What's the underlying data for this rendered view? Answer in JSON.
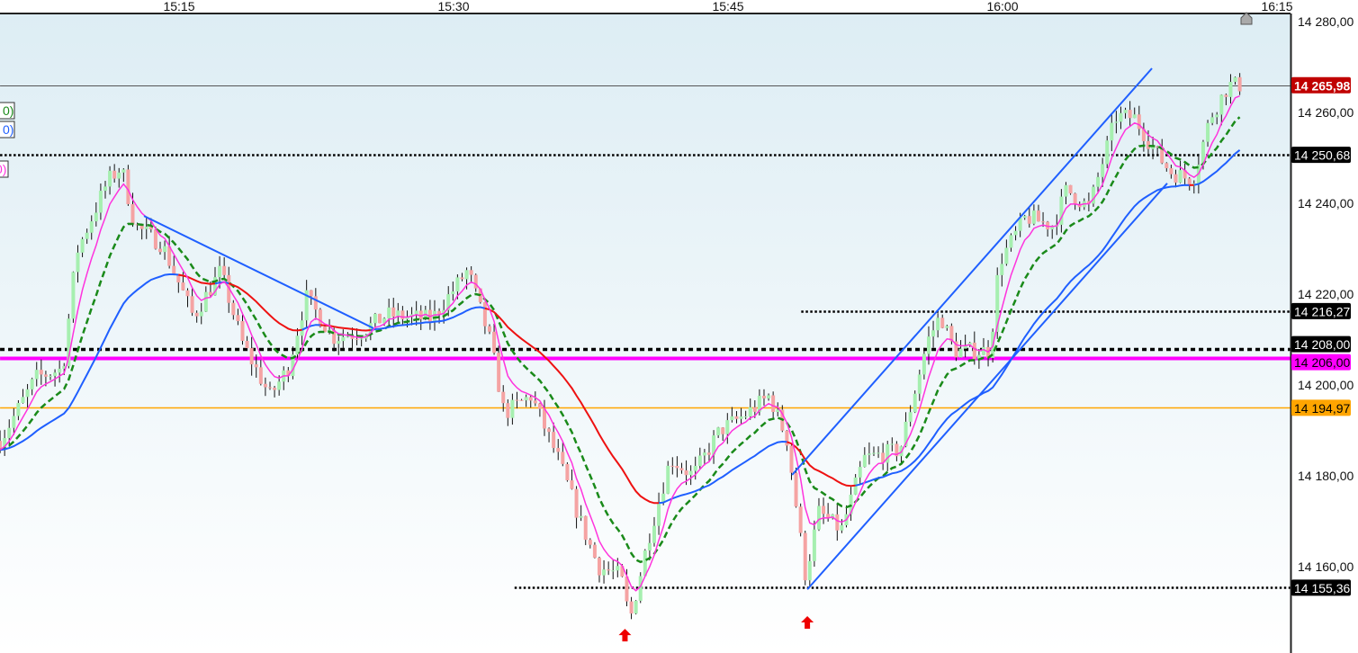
{
  "chart_data": {
    "type": "candlestick",
    "instrument_price_label": "14 265,98",
    "y_axis": {
      "range": [
        14145,
        14283
      ],
      "ticks": [
        {
          "value": 14280,
          "label": "14 280,00"
        },
        {
          "value": 14260,
          "label": "14 260,00"
        },
        {
          "value": 14240,
          "label": "14 240,00"
        },
        {
          "value": 14220,
          "label": "14 220,00"
        },
        {
          "value": 14200,
          "label": "14 200,00"
        },
        {
          "value": 14180,
          "label": "14 180,00"
        },
        {
          "value": 14160,
          "label": "14 160,00"
        }
      ]
    },
    "x_axis": {
      "ticks": [
        {
          "time": "15:15:00",
          "label": "15:15"
        },
        {
          "time": "15:30:00",
          "label": "15:30"
        },
        {
          "time": "15:45:00",
          "label": "15:45"
        },
        {
          "time": "16:00:00",
          "label": "16:00"
        },
        {
          "time": "16:15:00",
          "label": "16:15"
        }
      ]
    },
    "price_path": [
      [
        "15:05:13",
        14187.7
      ],
      [
        "15:07:11",
        14201.6
      ],
      [
        "15:08:39",
        14203.6
      ],
      [
        "15:09:23",
        14229
      ],
      [
        "15:11:07",
        14245
      ],
      [
        "15:11:51",
        14248
      ],
      [
        "15:12:35",
        14235
      ],
      [
        "15:14:04",
        14231
      ],
      [
        "15:15:47",
        14215
      ],
      [
        "15:17:16",
        14225
      ],
      [
        "15:18:29",
        14209
      ],
      [
        "15:19:58",
        14197.6
      ],
      [
        "15:20:57",
        14203.6
      ],
      [
        "15:21:56",
        14219.4
      ],
      [
        "15:23:25",
        14210.5
      ],
      [
        "15:24:53",
        14211.5
      ],
      [
        "15:26:22",
        14215.4
      ],
      [
        "15:28:49",
        14214.5
      ],
      [
        "15:30:47",
        14225.3
      ],
      [
        "15:32:01",
        14209.5
      ],
      [
        "15:32:46",
        14193.7
      ],
      [
        "15:34:14",
        14197.6
      ],
      [
        "15:35:43",
        14183.8
      ],
      [
        "15:36:56",
        14170
      ],
      [
        "15:37:55",
        14160
      ],
      [
        "15:39:09",
        14158
      ],
      [
        "15:39:38",
        14148
      ],
      [
        "15:40:38",
        14166
      ],
      [
        "15:41:52",
        14183.8
      ],
      [
        "15:43:05",
        14180
      ],
      [
        "15:44:34",
        14190
      ],
      [
        "15:46:02",
        14193.7
      ],
      [
        "15:47:16",
        14197.6
      ],
      [
        "15:48:15",
        14187.7
      ],
      [
        "15:49:14",
        14158
      ],
      [
        "15:49:58",
        14171.9
      ],
      [
        "15:51:12",
        14168
      ],
      [
        "15:52:26",
        14183.8
      ],
      [
        "15:54:24",
        14185.7
      ],
      [
        "15:55:53",
        14209.5
      ],
      [
        "15:56:37",
        14215.4
      ],
      [
        "15:57:21",
        14207.5
      ],
      [
        "15:59:19",
        14207.5
      ],
      [
        "15:59:49",
        14227
      ],
      [
        "16:01:17",
        14237
      ],
      [
        "16:02:46",
        14235
      ],
      [
        "16:03:30",
        14243
      ],
      [
        "16:04:44",
        14239
      ],
      [
        "16:06:12",
        14259
      ],
      [
        "16:07:11",
        14259
      ],
      [
        "16:08:25",
        14251
      ],
      [
        "16:09:10",
        14247
      ],
      [
        "16:10:23",
        14245
      ],
      [
        "16:11:22",
        14259
      ],
      [
        "16:12:21",
        14266
      ],
      [
        "16:13:11",
        14265.98
      ]
    ],
    "moving_averages": [
      {
        "style": "solid",
        "color": "#ff33dd",
        "legend": "0)"
      },
      {
        "style": "dashed",
        "color": "#1a8a1a",
        "legend": "0)"
      },
      {
        "style": "solid",
        "color_up": "#1f5fff",
        "color_down": "#ee1111",
        "legend": "0)"
      }
    ],
    "horizontal_levels": [
      {
        "value": 14265.98,
        "label": "14 265,98",
        "style": "current",
        "color": "#555555",
        "label_bg": "#c00000",
        "label_fg": "#ffffff",
        "from": "15:05:13"
      },
      {
        "value": 14250.68,
        "label": "14 250,68",
        "style": "dotted",
        "color": "#000000",
        "label_bg": "#000000",
        "label_fg": "#ffffff",
        "from": "15:05:13"
      },
      {
        "value": 14216.27,
        "label": "14 216,27",
        "style": "dotted",
        "color": "#000000",
        "label_bg": "#000000",
        "label_fg": "#ffffff",
        "from": "15:49:00"
      },
      {
        "value": 14208.0,
        "label": "14 208,00",
        "style": "dashed",
        "color": "#000000",
        "label_bg": "#000000",
        "label_fg": "#ffffff",
        "from": "15:05:13"
      },
      {
        "value": 14206.0,
        "label": "14 206,00",
        "style": "solid-thick",
        "color": "#ff00ff",
        "label_bg": "#ff00ff",
        "label_fg": "#000000",
        "from": "15:05:13"
      },
      {
        "value": 14194.97,
        "label": "14 194,97",
        "style": "solid",
        "color": "#ffa500",
        "label_bg": "#ffa500",
        "label_fg": "#000000",
        "from": "15:05:13"
      },
      {
        "value": 14155.36,
        "label": "14 155,36",
        "style": "dotted",
        "color": "#000000",
        "label_bg": "#000000",
        "label_fg": "#ffffff",
        "from": "15:33:20"
      }
    ],
    "trend_lines": [
      {
        "from": [
          "15:13:05",
          14237.2
        ],
        "to": [
          "15:25:37",
          14212.5
        ],
        "color": "#1f5fff"
      },
      {
        "from": [
          "15:48:30",
          14180.2
        ],
        "to": [
          "16:08:10",
          14269.7
        ],
        "color": "#1f5fff"
      },
      {
        "from": [
          "15:49:20",
          14155.0
        ],
        "to": [
          "16:09:00",
          14244.4
        ],
        "color": "#1f5fff"
      }
    ],
    "signals": [
      {
        "type": "buy-arrow",
        "time": "15:39:22",
        "price": 14147.5,
        "color": "#ee0000"
      },
      {
        "type": "buy-arrow",
        "time": "15:49:20",
        "price": 14150.3,
        "color": "#ee0000"
      }
    ],
    "colors": {
      "up": "#a6efb0",
      "down": "#f5a3a3",
      "wick": "#111111",
      "bg_top": "#deeef5",
      "bg_bottom": "#ffffff"
    }
  }
}
